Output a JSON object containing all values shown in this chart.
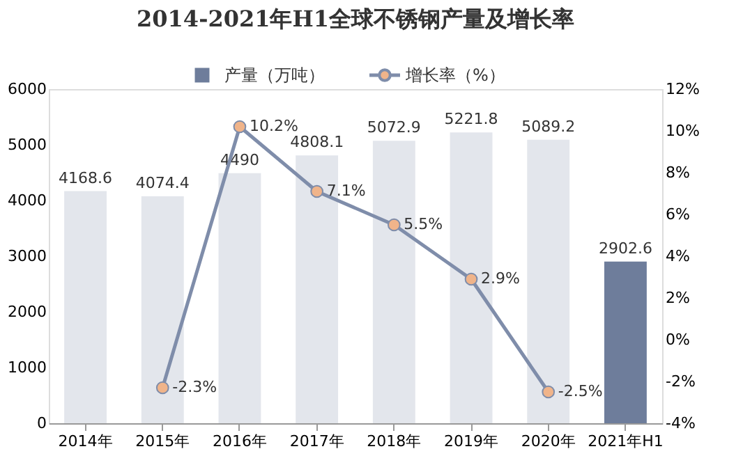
{
  "chart_data": {
    "type": "bar",
    "title": "2014-2021年H1全球不锈钢产量及增长率",
    "categories": [
      "2014年",
      "2015年",
      "2016年",
      "2017年",
      "2018年",
      "2019年",
      "2020年",
      "2021年H1"
    ],
    "series": [
      {
        "name": "产量（万吨）",
        "type": "bar",
        "colors": [
          "#e3e6ec",
          "#e3e6ec",
          "#e3e6ec",
          "#e3e6ec",
          "#e3e6ec",
          "#e3e6ec",
          "#e3e6ec",
          "#6e7d9b"
        ],
        "color": "#6e7d9b",
        "values": [
          4168.6,
          4074.4,
          4490,
          4808.1,
          5072.9,
          5221.8,
          5089.2,
          2902.6
        ]
      },
      {
        "name": "增长率（%）",
        "type": "line",
        "axis": "y2",
        "color": "#7f8daa",
        "marker": "circle",
        "values": [
          null,
          -2.3,
          10.2,
          7.1,
          5.5,
          2.9,
          -2.5,
          null
        ],
        "value_labels": [
          null,
          "-2.3%",
          "10.2%",
          "7.1%",
          "5.5%",
          "2.9%",
          "-2.5%",
          null
        ]
      }
    ],
    "data_labels": true,
    "ylim": [
      0,
      6000
    ],
    "yticks": [
      0,
      1000,
      2000,
      3000,
      4000,
      5000,
      6000
    ],
    "y2lim": [
      -4,
      12
    ],
    "y2ticks": [
      {
        "value": -4,
        "label": "-4%"
      },
      {
        "value": -2,
        "label": "-2%"
      },
      {
        "value": 0,
        "label": "0%"
      },
      {
        "value": 2,
        "label": "2%"
      },
      {
        "value": 4,
        "label": "4%"
      },
      {
        "value": 6,
        "label": "6%"
      },
      {
        "value": 8,
        "label": "8%"
      },
      {
        "value": 10,
        "label": "10%"
      },
      {
        "value": 12,
        "label": "12%"
      }
    ],
    "legend": "top"
  }
}
